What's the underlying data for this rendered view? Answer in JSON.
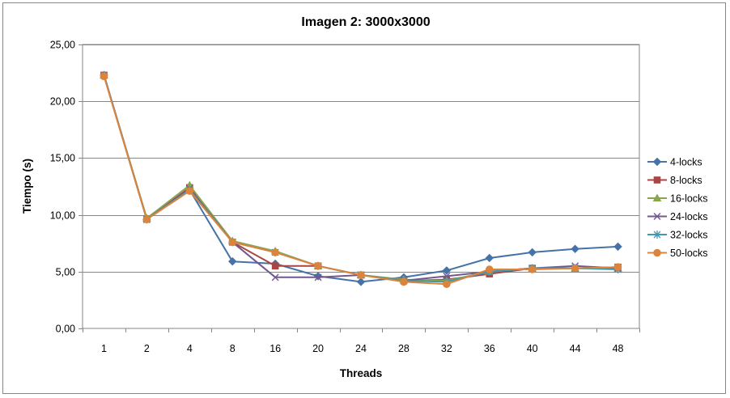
{
  "chart_data": {
    "type": "line",
    "title": "Imagen 2: 3000x3000",
    "xlabel": "Threads",
    "ylabel": "Tiempo (s)",
    "categories": [
      "1",
      "2",
      "4",
      "8",
      "16",
      "20",
      "24",
      "28",
      "32",
      "36",
      "40",
      "44",
      "48"
    ],
    "ylim": [
      0,
      25
    ],
    "yticks": [
      "0,00",
      "5,00",
      "10,00",
      "15,00",
      "20,00",
      "25,00"
    ],
    "ytick_values": [
      0,
      5,
      10,
      15,
      20,
      25
    ],
    "grid": true,
    "legend_position": "right",
    "series": [
      {
        "name": "4-locks",
        "color": "#4572A7",
        "marker": "diamond",
        "values": [
          22.3,
          9.6,
          12.2,
          5.9,
          5.7,
          4.6,
          4.1,
          4.5,
          5.1,
          6.2,
          6.7,
          7.0,
          7.2
        ]
      },
      {
        "name": "8-locks",
        "color": "#AA4643",
        "marker": "square",
        "values": [
          22.3,
          9.6,
          12.4,
          7.6,
          5.5,
          5.5,
          4.7,
          4.2,
          4.3,
          4.8,
          5.3,
          5.3,
          5.4
        ]
      },
      {
        "name": "16-locks",
        "color": "#89A54E",
        "marker": "triangle",
        "values": [
          22.3,
          9.7,
          12.6,
          7.7,
          6.8,
          5.5,
          4.7,
          4.3,
          4.2,
          5.0,
          5.3,
          5.3,
          5.3
        ]
      },
      {
        "name": "24-locks",
        "color": "#71588F",
        "marker": "x",
        "values": [
          22.3,
          9.6,
          12.3,
          7.6,
          4.5,
          4.5,
          4.7,
          4.2,
          4.6,
          5.0,
          5.3,
          5.5,
          5.3
        ]
      },
      {
        "name": "32-locks",
        "color": "#4198AF",
        "marker": "star",
        "values": [
          22.3,
          9.6,
          12.2,
          7.6,
          6.7,
          5.5,
          4.7,
          4.2,
          4.1,
          5.0,
          5.3,
          5.3,
          5.2
        ]
      },
      {
        "name": "50-locks",
        "color": "#DB843D",
        "marker": "circle",
        "values": [
          22.2,
          9.6,
          12.1,
          7.6,
          6.7,
          5.5,
          4.7,
          4.1,
          3.9,
          5.2,
          5.2,
          5.3,
          5.4
        ]
      }
    ]
  }
}
